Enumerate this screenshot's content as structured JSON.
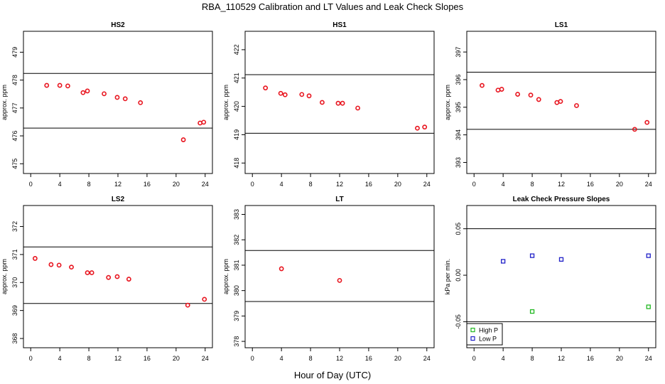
{
  "figure": {
    "title": "RBA_110529  Calibration and LT Values and Leak Check Slopes",
    "xlabel": "Hour of Day (UTC)"
  },
  "colors": {
    "point_red": "#e8141e",
    "high_p": "#22b822",
    "low_p": "#2020c8",
    "axis": "#000000"
  },
  "chart_data": [
    {
      "type": "scatter",
      "title": "HS2",
      "xlabel": "",
      "ylabel": "approx. ppm",
      "xlim": [
        -1,
        25
      ],
      "ylim": [
        474.65,
        479.75
      ],
      "xticks": [
        0,
        4,
        8,
        12,
        16,
        20,
        24
      ],
      "yticks": [
        475,
        476,
        477,
        478,
        479
      ],
      "hlines": [
        476.28,
        478.24
      ],
      "series": [
        {
          "color": "#e8141e",
          "x": [
            2.2,
            4.0,
            5.1,
            7.2,
            7.8,
            10.1,
            11.9,
            13.0,
            15.1,
            21.0,
            23.3,
            23.8
          ],
          "y": [
            477.81,
            477.81,
            477.79,
            477.55,
            477.61,
            477.51,
            477.38,
            477.33,
            477.19,
            475.86,
            476.46,
            476.49
          ]
        }
      ]
    },
    {
      "type": "scatter",
      "title": "HS1",
      "xlabel": "",
      "ylabel": "approx. ppm",
      "xlim": [
        -1,
        25
      ],
      "ylim": [
        417.63,
        422.65
      ],
      "xticks": [
        0,
        4,
        8,
        12,
        16,
        20,
        24
      ],
      "yticks": [
        418,
        419,
        420,
        421,
        422
      ],
      "hlines": [
        419.05,
        421.12
      ],
      "series": [
        {
          "color": "#e8141e",
          "x": [
            1.8,
            3.9,
            4.5,
            6.8,
            7.8,
            9.6,
            11.8,
            12.4,
            14.5,
            22.7,
            23.7
          ],
          "y": [
            420.65,
            420.46,
            420.41,
            420.42,
            420.37,
            420.14,
            420.11,
            420.11,
            419.94,
            419.23,
            419.27
          ]
        }
      ]
    },
    {
      "type": "scatter",
      "title": "LS1",
      "xlabel": "",
      "ylabel": "approx. ppm",
      "xlim": [
        -1,
        25
      ],
      "ylim": [
        392.6,
        397.75
      ],
      "xticks": [
        0,
        4,
        8,
        12,
        16,
        20,
        24
      ],
      "yticks": [
        393,
        394,
        395,
        396,
        397
      ],
      "hlines": [
        394.2,
        396.27
      ],
      "series": [
        {
          "color": "#e8141e",
          "x": [
            1.1,
            3.3,
            3.8,
            6.0,
            7.8,
            8.9,
            11.4,
            11.9,
            14.1,
            22.1,
            23.8
          ],
          "y": [
            395.79,
            395.62,
            395.65,
            395.47,
            395.44,
            395.28,
            395.17,
            395.21,
            395.06,
            394.2,
            394.45
          ]
        }
      ]
    },
    {
      "type": "scatter",
      "title": "LS2",
      "xlabel": "",
      "ylabel": "approx. ppm",
      "xlim": [
        -1,
        25
      ],
      "ylim": [
        367.67,
        372.75
      ],
      "xticks": [
        0,
        4,
        8,
        12,
        16,
        20,
        24
      ],
      "yticks": [
        368,
        369,
        370,
        371,
        372
      ],
      "hlines": [
        369.25,
        371.27
      ],
      "series": [
        {
          "color": "#e8141e",
          "x": [
            0.6,
            2.8,
            3.9,
            5.6,
            7.8,
            8.4,
            10.7,
            11.9,
            13.5,
            21.6,
            23.9
          ],
          "y": [
            370.86,
            370.64,
            370.62,
            370.55,
            370.35,
            370.35,
            370.18,
            370.21,
            370.12,
            369.19,
            369.4
          ]
        }
      ]
    },
    {
      "type": "scatter",
      "title": "LT",
      "xlabel": "",
      "ylabel": "approx. ppm",
      "xlim": [
        -1,
        25
      ],
      "ylim": [
        377.75,
        383.35
      ],
      "xticks": [
        0,
        4,
        8,
        12,
        16,
        20,
        24
      ],
      "yticks": [
        378,
        379,
        380,
        381,
        382,
        383
      ],
      "hlines": [
        379.57,
        381.58
      ],
      "series": [
        {
          "color": "#e8141e",
          "x": [
            4.0,
            12.0
          ],
          "y": [
            380.86,
            380.4
          ]
        }
      ]
    },
    {
      "type": "scatter",
      "title": "Leak Check Pressure Slopes",
      "xlabel": "",
      "ylabel": "kPa per min.",
      "xlim": [
        -1,
        25
      ],
      "ylim": [
        -0.078,
        0.075
      ],
      "xticks": [
        0,
        4,
        8,
        12,
        16,
        20,
        24
      ],
      "yticks": [
        -0.05,
        0.0,
        0.05
      ],
      "ytick_labels": [
        "-0.05",
        "0.00",
        "0.05"
      ],
      "hlines": [
        -0.05,
        0.05
      ],
      "legend": "bottom-left",
      "series": [
        {
          "name": "High P",
          "color": "#22b822",
          "x": [
            8.0,
            24.0
          ],
          "y": [
            -0.039,
            -0.034
          ]
        },
        {
          "name": "Low P",
          "color": "#2020c8",
          "x": [
            4.0,
            8.0,
            12.0,
            24.0
          ],
          "y": [
            0.015,
            0.021,
            0.017,
            0.021
          ]
        }
      ]
    }
  ]
}
